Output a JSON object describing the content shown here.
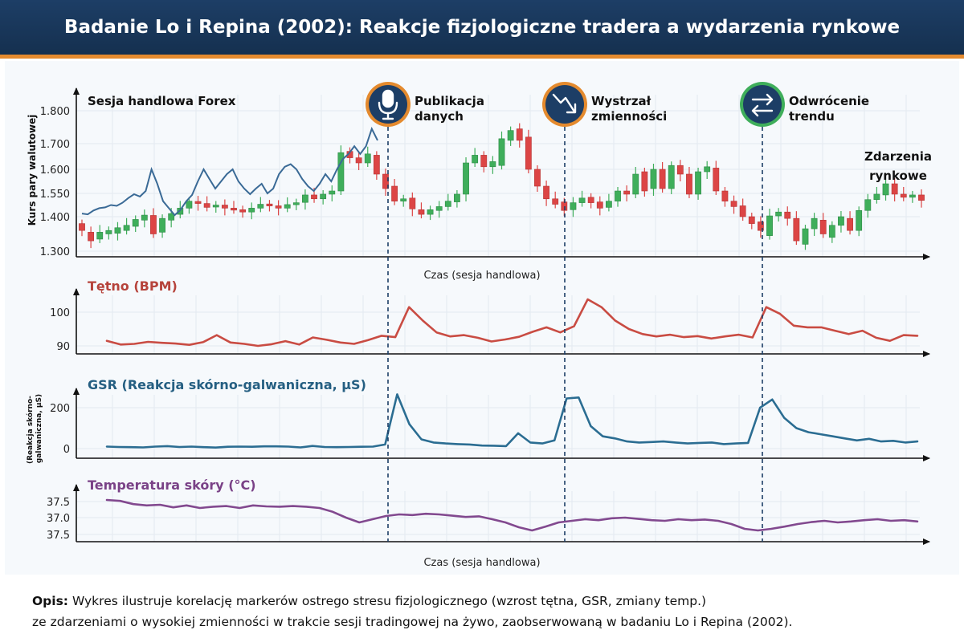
{
  "title": "Badanie Lo i Repina (2002): Reakcje fizjologiczne tradera a wydarzenia rynkowe",
  "colors": {
    "up": "#3fae5b",
    "down": "#dc4545",
    "price": "#3a6a96",
    "hr": "#c94c43",
    "gsr": "#2b6d92",
    "temp": "#82498f",
    "marker": "#1d3e66"
  },
  "events": [
    {
      "label1": "Publikacja",
      "label2": "danych",
      "icon": "microphone-icon",
      "ring": "#e48a2e"
    },
    {
      "label1": "Wystrzał",
      "label2": "zmienności",
      "icon": "trend-down-arrow-icon",
      "ring": "#e48a2e"
    },
    {
      "label1": "Odwrócenie",
      "label2": "trendu",
      "icon": "reverse-arrows-icon",
      "ring": "#3fae5b"
    }
  ],
  "side_label_1": "Zdarzenia",
  "side_label_2": "rynkowe",
  "chart_data": [
    {
      "type": "candlestick+line",
      "title": "Sesja handlowa Forex",
      "ylabel": "Kurs pary walutowej",
      "xlabel": "Czas (sesja handlowa)",
      "yticks": [
        "1.800",
        "1.700",
        "1.600",
        "1.550",
        "1.400",
        "1.300"
      ],
      "candles": [
        {
          "o": 1.38,
          "c": 1.36
        },
        {
          "o": 1.355,
          "c": 1.33
        },
        {
          "o": 1.335,
          "c": 1.355
        },
        {
          "o": 1.35,
          "c": 1.36
        },
        {
          "o": 1.352,
          "c": 1.368
        },
        {
          "o": 1.36,
          "c": 1.375
        },
        {
          "o": 1.372,
          "c": 1.392
        },
        {
          "o": 1.39,
          "c": 1.41
        },
        {
          "o": 1.408,
          "c": 1.35
        },
        {
          "o": 1.355,
          "c": 1.395
        },
        {
          "o": 1.39,
          "c": 1.42
        },
        {
          "o": 1.415,
          "c": 1.455
        },
        {
          "o": 1.455,
          "c": 1.5
        },
        {
          "o": 1.498,
          "c": 1.485
        },
        {
          "o": 1.485,
          "c": 1.46
        },
        {
          "o": 1.462,
          "c": 1.475
        },
        {
          "o": 1.475,
          "c": 1.455
        },
        {
          "o": 1.455,
          "c": 1.445
        },
        {
          "o": 1.445,
          "c": 1.43
        },
        {
          "o": 1.43,
          "c": 1.455
        },
        {
          "o": 1.455,
          "c": 1.48
        },
        {
          "o": 1.482,
          "c": 1.47
        },
        {
          "o": 1.47,
          "c": 1.455
        },
        {
          "o": 1.455,
          "c": 1.478
        },
        {
          "o": 1.478,
          "c": 1.49
        },
        {
          "o": 1.492,
          "c": 1.54
        },
        {
          "o": 1.54,
          "c": 1.515
        },
        {
          "o": 1.515,
          "c": 1.545
        },
        {
          "o": 1.545,
          "c": 1.555
        },
        {
          "o": 1.555,
          "c": 1.665
        },
        {
          "o": 1.67,
          "c": 1.645
        },
        {
          "o": 1.645,
          "c": 1.625
        },
        {
          "o": 1.625,
          "c": 1.66
        },
        {
          "o": 1.655,
          "c": 1.59
        },
        {
          "o": 1.59,
          "c": 1.56
        },
        {
          "o": 1.565,
          "c": 1.5
        },
        {
          "o": 1.5,
          "c": 1.515
        },
        {
          "o": 1.52,
          "c": 1.45
        },
        {
          "o": 1.445,
          "c": 1.415
        },
        {
          "o": 1.415,
          "c": 1.445
        },
        {
          "o": 1.44,
          "c": 1.465
        },
        {
          "o": 1.465,
          "c": 1.5
        },
        {
          "o": 1.495,
          "c": 1.545
        },
        {
          "o": 1.545,
          "c": 1.625
        },
        {
          "o": 1.625,
          "c": 1.655
        },
        {
          "o": 1.655,
          "c": 1.61
        },
        {
          "o": 1.61,
          "c": 1.63
        },
        {
          "o": 1.615,
          "c": 1.715
        },
        {
          "o": 1.71,
          "c": 1.74
        },
        {
          "o": 1.745,
          "c": 1.71
        },
        {
          "o": 1.72,
          "c": 1.6
        },
        {
          "o": 1.6,
          "c": 1.565
        },
        {
          "o": 1.565,
          "c": 1.515
        },
        {
          "o": 1.515,
          "c": 1.48
        },
        {
          "o": 1.495,
          "c": 1.44
        },
        {
          "o": 1.445,
          "c": 1.49
        },
        {
          "o": 1.49,
          "c": 1.52
        },
        {
          "o": 1.525,
          "c": 1.49
        },
        {
          "o": 1.495,
          "c": 1.455
        },
        {
          "o": 1.46,
          "c": 1.5
        },
        {
          "o": 1.5,
          "c": 1.555
        },
        {
          "o": 1.555,
          "c": 1.545
        },
        {
          "o": 1.545,
          "c": 1.59
        },
        {
          "o": 1.595,
          "c": 1.555
        },
        {
          "o": 1.56,
          "c": 1.6
        },
        {
          "o": 1.6,
          "c": 1.56
        },
        {
          "o": 1.56,
          "c": 1.615
        },
        {
          "o": 1.615,
          "c": 1.59
        },
        {
          "o": 1.59,
          "c": 1.545
        },
        {
          "o": 1.545,
          "c": 1.595
        },
        {
          "o": 1.595,
          "c": 1.61
        },
        {
          "o": 1.605,
          "c": 1.555
        },
        {
          "o": 1.555,
          "c": 1.5
        },
        {
          "o": 1.5,
          "c": 1.465
        },
        {
          "o": 1.47,
          "c": 1.4
        },
        {
          "o": 1.4,
          "c": 1.38
        },
        {
          "o": 1.385,
          "c": 1.36
        },
        {
          "o": 1.345,
          "c": 1.405
        },
        {
          "o": 1.405,
          "c": 1.43
        },
        {
          "o": 1.43,
          "c": 1.395
        },
        {
          "o": 1.395,
          "c": 1.33
        },
        {
          "o": 1.32,
          "c": 1.365
        },
        {
          "o": 1.365,
          "c": 1.395
        },
        {
          "o": 1.39,
          "c": 1.35
        },
        {
          "o": 1.34,
          "c": 1.375
        },
        {
          "o": 1.375,
          "c": 1.4
        },
        {
          "o": 1.395,
          "c": 1.36
        },
        {
          "o": 1.36,
          "c": 1.44
        },
        {
          "o": 1.44,
          "c": 1.51
        },
        {
          "o": 1.51,
          "c": 1.545
        },
        {
          "o": 1.54,
          "c": 1.57
        },
        {
          "o": 1.57,
          "c": 1.545
        },
        {
          "o": 1.545,
          "c": 1.525
        },
        {
          "o": 1.525,
          "c": 1.54
        },
        {
          "o": 1.54,
          "c": 1.505
        }
      ],
      "price_line": [
        1.42,
        1.415,
        1.44,
        1.455,
        1.46,
        1.475,
        1.47,
        1.49,
        1.52,
        1.545,
        1.53,
        1.555,
        1.6,
        1.57,
        1.5,
        1.455,
        1.41,
        1.445,
        1.5,
        1.54,
        1.575,
        1.6,
        1.58,
        1.56,
        1.575,
        1.59,
        1.6,
        1.575,
        1.56,
        1.545,
        1.56,
        1.57,
        1.55,
        1.56,
        1.59,
        1.61,
        1.62,
        1.6,
        1.58,
        1.565,
        1.555,
        1.57,
        1.59,
        1.575,
        1.6,
        1.64,
        1.66,
        1.69,
        1.66,
        1.69,
        1.745,
        1.71
      ]
    },
    {
      "type": "line",
      "title": "Tętno (BPM)",
      "yticks": [
        "100",
        "90"
      ],
      "values": [
        91.5,
        90.4,
        90.6,
        91.2,
        90.9,
        90.7,
        90.3,
        91.1,
        93.2,
        91.0,
        90.6,
        90.0,
        90.5,
        91.4,
        90.4,
        92.5,
        91.8,
        91.0,
        90.6,
        91.7,
        93.0,
        92.6,
        101.5,
        97.5,
        94.0,
        92.8,
        93.2,
        92.4,
        91.3,
        91.9,
        92.7,
        94.2,
        95.5,
        94.0,
        95.8,
        103.8,
        101.5,
        97.5,
        95.0,
        93.5,
        92.8,
        93.3,
        92.6,
        92.9,
        92.2,
        92.8,
        93.3,
        92.5,
        101.5,
        99.5,
        96.0,
        95.5,
        95.5,
        94.5,
        93.5,
        94.5,
        92.4,
        91.5,
        93.2,
        93.0
      ]
    },
    {
      "type": "line",
      "title": "GSR (Reakcja skórno-galwaniczna, µS)",
      "ylabel": "(Reakcja skórno-galwaniczna, µS)",
      "yticks": [
        "200",
        "0"
      ],
      "values": [
        10,
        8,
        7,
        6,
        10,
        12,
        8,
        10,
        7,
        5,
        9,
        10,
        9,
        11,
        11,
        10,
        6,
        13,
        8,
        7,
        8,
        9,
        10,
        20,
        265,
        120,
        45,
        30,
        25,
        22,
        20,
        15,
        14,
        12,
        75,
        30,
        25,
        40,
        245,
        250,
        110,
        60,
        50,
        35,
        30,
        32,
        35,
        30,
        25,
        28,
        30,
        22,
        25,
        28,
        200,
        240,
        150,
        100,
        80,
        70,
        60,
        50,
        40,
        48,
        35,
        38,
        30,
        35
      ]
    },
    {
      "type": "line",
      "title": "Temperatura skóry (°C)",
      "xlabel": "Czas (sesja handlowa)",
      "yticks": [
        "37.5",
        "37.0",
        "37.5"
      ],
      "values": [
        37.55,
        37.52,
        37.42,
        37.38,
        37.4,
        37.32,
        37.38,
        37.3,
        37.34,
        37.36,
        37.3,
        37.38,
        37.35,
        37.34,
        37.36,
        37.34,
        37.3,
        37.18,
        37.0,
        36.85,
        36.95,
        37.05,
        37.1,
        37.08,
        37.12,
        37.1,
        37.06,
        37.02,
        37.04,
        36.95,
        36.85,
        36.7,
        36.6,
        36.72,
        36.85,
        36.9,
        36.95,
        36.92,
        36.98,
        37.0,
        36.96,
        36.92,
        36.9,
        36.95,
        36.92,
        36.94,
        36.9,
        36.8,
        36.65,
        36.6,
        36.65,
        36.72,
        36.8,
        36.86,
        36.9,
        36.85,
        36.88,
        36.92,
        36.95,
        36.9,
        36.92,
        36.88
      ]
    }
  ],
  "footer": {
    "bold": "Opis:",
    "line1": "Wykres ilustruje korelację markerów ostrego stresu fizjologicznego (wzrost tętna, GSR, zmiany temp.)",
    "line2": "ze zdarzeniami o wysokiej zmienności w trakcie sesji tradingowej na żywo, zaobserwowaną w badaniu Lo i Repina (2002)."
  }
}
